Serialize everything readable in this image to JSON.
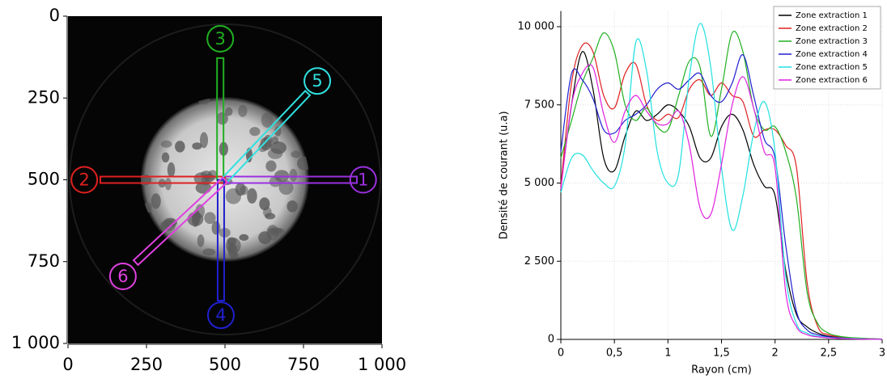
{
  "chart_data": [
    {
      "type": "image",
      "xlim": [
        0,
        1000
      ],
      "ylim": [
        1000,
        0
      ],
      "xticks": [
        0,
        250,
        500,
        750,
        {
          "value": 1000,
          "label": "1 000"
        }
      ],
      "yticks": [
        0,
        250,
        500,
        750,
        {
          "value": 1000,
          "label": "1 000"
        }
      ],
      "zones": [
        {
          "label": "1",
          "color": "#9b30e0",
          "start": [
            500,
            500
          ],
          "end": [
            920,
            500
          ],
          "marker": [
            940,
            500
          ]
        },
        {
          "label": "2",
          "color": "#e02020",
          "start": [
            500,
            500
          ],
          "end": [
            103,
            500
          ],
          "marker": [
            52,
            500
          ]
        },
        {
          "label": "3",
          "color": "#20b020",
          "start": [
            485,
            500
          ],
          "end": [
            485,
            128
          ],
          "marker": [
            485,
            69
          ]
        },
        {
          "label": "4",
          "color": "#2020d0",
          "start": [
            487,
            500
          ],
          "end": [
            487,
            869
          ],
          "marker": [
            487,
            914
          ]
        },
        {
          "label": "5",
          "color": "#30e0e0",
          "start": [
            500,
            500
          ],
          "end": [
            763,
            235
          ],
          "marker": [
            794,
            198
          ]
        },
        {
          "label": "6",
          "color": "#e040e0",
          "start": [
            500,
            500
          ],
          "end": [
            216,
            753
          ],
          "marker": [
            175,
            795
          ]
        }
      ]
    },
    {
      "type": "line",
      "xlabel": "Rayon (cm)",
      "ylabel": "Densité de courant (u.a)",
      "xlim": [
        0,
        3
      ],
      "ylim": [
        0,
        10500
      ],
      "xticks": [
        0,
        {
          "value": 0.5,
          "label": "0,5"
        },
        1,
        {
          "value": 1.5,
          "label": "1,5"
        },
        2,
        {
          "value": 2.5,
          "label": "2,5"
        },
        3
      ],
      "yticks": [
        0,
        {
          "value": 2500,
          "label": "2 500"
        },
        {
          "value": 5000,
          "label": "5 000"
        },
        {
          "value": 7500,
          "label": "7 500"
        },
        {
          "value": 10000,
          "label": "10 000"
        }
      ],
      "grid": true,
      "legend": "top-right",
      "x": [
        0,
        0.1,
        0.2,
        0.3,
        0.4,
        0.5,
        0.6,
        0.7,
        0.8,
        0.9,
        1.0,
        1.1,
        1.2,
        1.3,
        1.4,
        1.5,
        1.6,
        1.7,
        1.8,
        1.9,
        2.0,
        2.1,
        2.2,
        2.3,
        2.4,
        2.5,
        2.6,
        2.7,
        2.8,
        2.9,
        3.0
      ],
      "series": [
        {
          "name": "Zone extraction 1",
          "color": "#000000",
          "values": [
            4900,
            7500,
            9200,
            8000,
            5800,
            5400,
            6500,
            7300,
            7000,
            7200,
            7500,
            7300,
            6800,
            5800,
            5800,
            6800,
            7200,
            6700,
            5600,
            4900,
            4600,
            2200,
            800,
            400,
            200,
            100,
            60,
            40,
            30,
            20,
            10
          ]
        },
        {
          "name": "Zone extraction 2",
          "color": "#e02020",
          "values": [
            4900,
            8200,
            9400,
            9200,
            7800,
            7400,
            8500,
            8800,
            7500,
            7000,
            7200,
            7100,
            8000,
            8300,
            7800,
            8200,
            7800,
            7600,
            6500,
            6700,
            6700,
            6200,
            5500,
            1800,
            400,
            150,
            80,
            40,
            20,
            10,
            0
          ]
        },
        {
          "name": "Zone extraction 3",
          "color": "#20b020",
          "values": [
            5800,
            7000,
            8200,
            9000,
            9800,
            9200,
            7500,
            7000,
            7400,
            6800,
            6700,
            7800,
            8900,
            8700,
            6500,
            8000,
            9800,
            9200,
            7400,
            6700,
            6800,
            6000,
            4500,
            1500,
            500,
            200,
            100,
            60,
            40,
            20,
            10
          ]
        },
        {
          "name": "Zone extraction 4",
          "color": "#2020d0",
          "values": [
            6000,
            8500,
            8300,
            7700,
            6700,
            6600,
            7000,
            7200,
            7500,
            8000,
            8200,
            8000,
            8300,
            8500,
            7800,
            7600,
            8200,
            9100,
            7800,
            6400,
            5800,
            3000,
            900,
            300,
            150,
            80,
            50,
            30,
            20,
            10,
            0
          ]
        },
        {
          "name": "Zone extraction 5",
          "color": "#20e0e0",
          "values": [
            4700,
            5800,
            5900,
            5400,
            5000,
            4900,
            6200,
            9500,
            8600,
            6000,
            5000,
            5300,
            8400,
            10100,
            8700,
            5500,
            3500,
            4600,
            6600,
            7600,
            6000,
            2000,
            500,
            200,
            100,
            60,
            40,
            30,
            20,
            10,
            0
          ]
        },
        {
          "name": "Zone extraction 6",
          "color": "#e020e0",
          "values": [
            4800,
            7500,
            8500,
            8700,
            7200,
            6300,
            7300,
            7800,
            7300,
            6900,
            6900,
            7300,
            6200,
            4200,
            4000,
            5600,
            7500,
            8400,
            7400,
            6000,
            5500,
            1500,
            400,
            150,
            80,
            50,
            30,
            20,
            10,
            10,
            0
          ]
        }
      ]
    }
  ]
}
